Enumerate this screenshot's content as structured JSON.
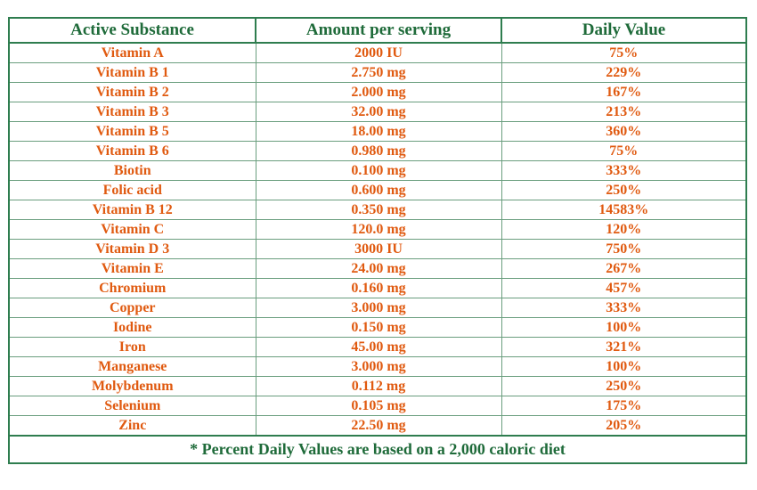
{
  "table": {
    "headers": [
      "Active Substance",
      "Amount per serving",
      "Daily Value"
    ],
    "rows": [
      [
        "Vitamin A",
        "2000 IU",
        "75%"
      ],
      [
        "Vitamin B 1",
        "2.750 mg",
        "229%"
      ],
      [
        "Vitamin B 2",
        "2.000 mg",
        "167%"
      ],
      [
        "Vitamin B 3",
        "32.00 mg",
        "213%"
      ],
      [
        "Vitamin B 5",
        "18.00 mg",
        "360%"
      ],
      [
        "Vitamin B 6",
        "0.980 mg",
        "75%"
      ],
      [
        "Biotin",
        "0.100 mg",
        "333%"
      ],
      [
        "Folic acid",
        "0.600 mg",
        "250%"
      ],
      [
        "Vitamin B 12",
        "0.350 mg",
        "14583%"
      ],
      [
        "Vitamin C",
        "120.0 mg",
        "120%"
      ],
      [
        "Vitamin D 3",
        "3000 IU",
        "750%"
      ],
      [
        "Vitamin E",
        "24.00 mg",
        "267%"
      ],
      [
        "Chromium",
        "0.160 mg",
        "457%"
      ],
      [
        "Copper",
        "3.000 mg",
        "333%"
      ],
      [
        "Iodine",
        "0.150 mg",
        "100%"
      ],
      [
        "Iron",
        "45.00 mg",
        "321%"
      ],
      [
        "Manganese",
        "3.000 mg",
        "100%"
      ],
      [
        "Molybdenum",
        "0.112 mg",
        "250%"
      ],
      [
        "Selenium",
        "0.105 mg",
        "175%"
      ],
      [
        "Zinc",
        "22.50 mg",
        "205%"
      ]
    ],
    "footnote": "* Percent Daily Values are based on a 2,000 caloric diet"
  },
  "colors": {
    "header_text": "#1f6b3a",
    "border": "#2e7d4f",
    "cell_text": "#e05a10"
  }
}
